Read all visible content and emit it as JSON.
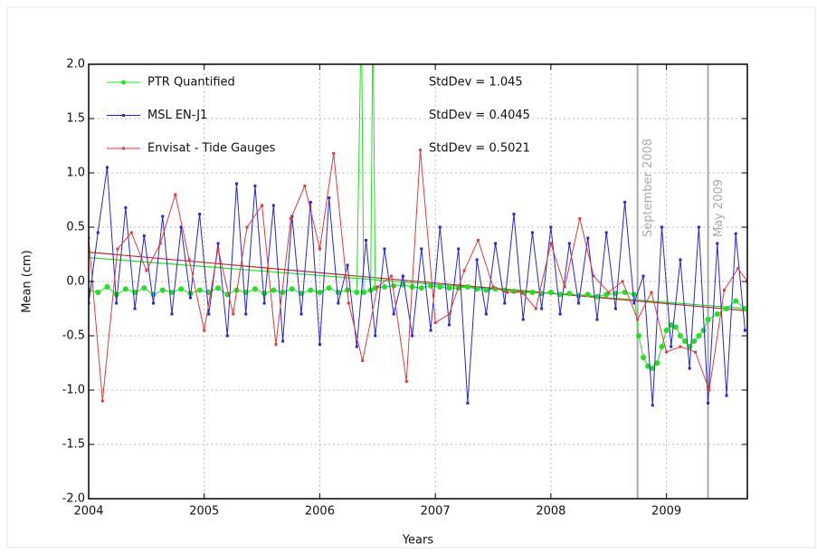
{
  "chart_data": {
    "type": "line",
    "x_label": "Years",
    "y_label": "Mean (cm)",
    "xlim": [
      2004,
      2009.7
    ],
    "ylim": [
      -2,
      2
    ],
    "xticks": [
      2004,
      2005,
      2006,
      2007,
      2008,
      2009
    ],
    "yticks": [
      {
        "value": 2,
        "label": "2.0"
      },
      1.5,
      {
        "value": 1,
        "label": "1.0"
      },
      0.5,
      {
        "value": 0,
        "label": "0.0"
      },
      -0.5,
      {
        "value": -1,
        "label": "-1.0"
      },
      -1.5,
      {
        "value": -2,
        "label": "-2.0"
      }
    ],
    "grid": true,
    "legend": "upper left",
    "series": [
      {
        "name": "PTR Quantified",
        "stat": "StdDev = 1.045",
        "color": "#22e022",
        "marker": "circle",
        "x": [
          2004.0,
          2004.08,
          2004.16,
          2004.24,
          2004.32,
          2004.4,
          2004.48,
          2004.56,
          2004.64,
          2004.72,
          2004.8,
          2004.88,
          2004.96,
          2005.04,
          2005.12,
          2005.2,
          2005.28,
          2005.36,
          2005.44,
          2005.52,
          2005.6,
          2005.68,
          2005.76,
          2005.84,
          2005.92,
          2006.0,
          2006.08,
          2006.16,
          2006.24,
          2006.32,
          2006.36,
          2006.38,
          2006.44,
          2006.46,
          2006.48,
          2006.56,
          2006.64,
          2006.72,
          2006.8,
          2006.88,
          2006.96,
          2007.04,
          2007.12,
          2007.2,
          2007.28,
          2007.36,
          2007.44,
          2007.52,
          2007.6,
          2007.68,
          2007.76,
          2007.84,
          2007.92,
          2008.0,
          2008.08,
          2008.16,
          2008.24,
          2008.32,
          2008.4,
          2008.48,
          2008.56,
          2008.64,
          2008.72,
          2008.76,
          2008.8,
          2008.84,
          2008.88,
          2008.92,
          2008.96,
          2009.0,
          2009.04,
          2009.08,
          2009.12,
          2009.16,
          2009.2,
          2009.24,
          2009.28,
          2009.32,
          2009.36,
          2009.44,
          2009.52,
          2009.6,
          2009.68
        ],
        "values": [
          -0.08,
          -0.1,
          -0.05,
          -0.12,
          -0.07,
          -0.1,
          -0.06,
          -0.12,
          -0.08,
          -0.1,
          -0.07,
          -0.11,
          -0.08,
          -0.1,
          -0.06,
          -0.12,
          -0.08,
          -0.1,
          -0.07,
          -0.11,
          -0.08,
          -0.1,
          -0.07,
          -0.11,
          -0.08,
          -0.1,
          -0.06,
          -0.1,
          -0.08,
          -0.1,
          2.5,
          -0.1,
          -0.08,
          2.5,
          -0.06,
          -0.05,
          -0.04,
          -0.03,
          -0.05,
          -0.06,
          -0.04,
          -0.05,
          -0.06,
          -0.06,
          -0.05,
          -0.07,
          -0.08,
          -0.07,
          -0.08,
          -0.09,
          -0.1,
          -0.1,
          -0.11,
          -0.1,
          -0.12,
          -0.11,
          -0.13,
          -0.12,
          -0.14,
          -0.12,
          -0.11,
          -0.1,
          -0.12,
          -0.5,
          -0.7,
          -0.78,
          -0.8,
          -0.75,
          -0.6,
          -0.45,
          -0.4,
          -0.42,
          -0.5,
          -0.55,
          -0.6,
          -0.55,
          -0.5,
          -0.45,
          -0.35,
          -0.3,
          -0.25,
          -0.18,
          -0.25
        ]
      },
      {
        "name": "MSL EN-J1",
        "stat": "StdDev = 0.4045",
        "color": "#2626d8",
        "marker": "square",
        "x": [
          2004.0,
          2004.08,
          2004.16,
          2004.24,
          2004.32,
          2004.4,
          2004.48,
          2004.56,
          2004.64,
          2004.72,
          2004.8,
          2004.88,
          2004.96,
          2005.04,
          2005.12,
          2005.2,
          2005.28,
          2005.36,
          2005.44,
          2005.52,
          2005.6,
          2005.68,
          2005.76,
          2005.84,
          2005.92,
          2006.0,
          2006.08,
          2006.16,
          2006.24,
          2006.32,
          2006.4,
          2006.48,
          2006.56,
          2006.64,
          2006.72,
          2006.8,
          2006.88,
          2006.96,
          2007.04,
          2007.12,
          2007.2,
          2007.28,
          2007.36,
          2007.44,
          2007.52,
          2007.6,
          2007.68,
          2007.76,
          2007.84,
          2007.92,
          2008.0,
          2008.08,
          2008.16,
          2008.24,
          2008.32,
          2008.4,
          2008.48,
          2008.56,
          2008.64,
          2008.72,
          2008.8,
          2008.88,
          2008.96,
          2009.04,
          2009.12,
          2009.2,
          2009.28,
          2009.36,
          2009.44,
          2009.52,
          2009.6,
          2009.68
        ],
        "values": [
          -0.2,
          0.45,
          1.05,
          -0.2,
          0.68,
          -0.25,
          0.42,
          -0.2,
          0.6,
          -0.3,
          0.5,
          -0.15,
          0.62,
          -0.3,
          0.35,
          -0.5,
          0.9,
          -0.3,
          0.88,
          -0.2,
          0.7,
          -0.55,
          0.6,
          -0.3,
          0.73,
          -0.58,
          0.77,
          -0.2,
          0.15,
          -0.6,
          0.38,
          -0.5,
          0.3,
          -0.3,
          0.05,
          -0.5,
          0.3,
          -0.45,
          0.5,
          -0.4,
          0.3,
          -1.12,
          0.2,
          -0.3,
          0.35,
          -0.2,
          0.62,
          -0.35,
          0.45,
          -0.25,
          0.5,
          -0.3,
          0.35,
          -0.2,
          0.4,
          -0.35,
          0.45,
          -0.25,
          0.73,
          -0.2,
          0.05,
          -1.14,
          0.5,
          -0.6,
          0.2,
          -0.8,
          0.5,
          -1.12,
          0.35,
          -1.05,
          0.44,
          -0.45
        ]
      },
      {
        "name": "Envisat - Tide Gauges",
        "stat": "StdDev = 0.5021",
        "color": "#e23a3a",
        "marker": "square",
        "x": [
          2004.0,
          2004.12,
          2004.25,
          2004.37,
          2004.5,
          2004.62,
          2004.75,
          2004.87,
          2005.0,
          2005.12,
          2005.25,
          2005.37,
          2005.5,
          2005.62,
          2005.75,
          2005.87,
          2006.0,
          2006.12,
          2006.25,
          2006.37,
          2006.5,
          2006.62,
          2006.75,
          2006.87,
          2007.0,
          2007.12,
          2007.25,
          2007.37,
          2007.5,
          2007.62,
          2007.75,
          2007.87,
          2008.0,
          2008.12,
          2008.25,
          2008.37,
          2008.5,
          2008.62,
          2008.75,
          2008.87,
          2009.0,
          2009.12,
          2009.25,
          2009.37,
          2009.5,
          2009.62,
          2009.7
        ],
        "values": [
          0.4,
          -1.1,
          0.3,
          0.45,
          0.1,
          0.35,
          0.8,
          0.2,
          -0.45,
          0.3,
          -0.3,
          0.5,
          0.7,
          -0.58,
          0.58,
          0.88,
          0.3,
          1.18,
          -0.2,
          -0.73,
          -0.05,
          0.05,
          -0.92,
          1.21,
          -0.38,
          -0.3,
          0.1,
          0.38,
          -0.05,
          -0.1,
          -0.1,
          -0.25,
          0.35,
          -0.05,
          0.58,
          0.05,
          -0.1,
          0.0,
          -0.35,
          -0.1,
          -0.65,
          -0.6,
          -0.65,
          -1.0,
          -0.08,
          0.12,
          0.0
        ]
      }
    ],
    "trend_lines": [
      {
        "color": "#22e022",
        "x": [
          2004,
          2009.7
        ],
        "values": [
          0.22,
          -0.25
        ]
      },
      {
        "color": "#c02a2a",
        "x": [
          2004,
          2009.7
        ],
        "values": [
          0.27,
          -0.27
        ]
      }
    ],
    "annotations": [
      {
        "x": 2008.75,
        "label": "September 2008"
      },
      {
        "x": 2009.36,
        "label": "May 2009"
      }
    ]
  }
}
